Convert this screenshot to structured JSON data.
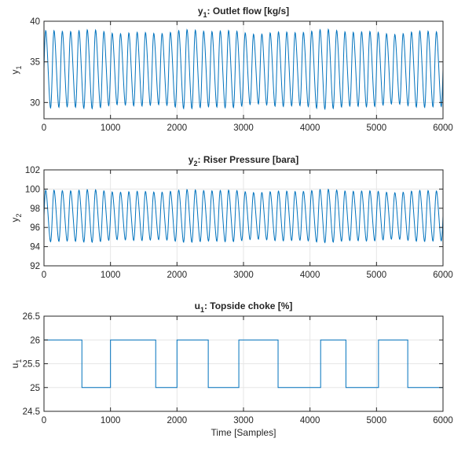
{
  "chart_data": [
    {
      "type": "line",
      "title": "y₁: Outlet flow [kg/s]",
      "title_main": "y",
      "title_sub": "1",
      "title_rest": ": Outlet flow [kg/s]",
      "ylabel_main": "y",
      "ylabel_sub": "1",
      "xlabel": "",
      "xlim": [
        0,
        6000
      ],
      "ylim": [
        28,
        40
      ],
      "x_ticks": [
        "0",
        "1000",
        "2000",
        "3000",
        "4000",
        "5000",
        "6000"
      ],
      "y_ticks": [
        "30",
        "35",
        "40"
      ],
      "grid": true,
      "color": "#0072BD",
      "series_shape": {
        "kind": "oscillation",
        "mean": 34.1,
        "amplitude": 4.6,
        "period_samples": 125,
        "min": 29.5,
        "max": 38.9
      }
    },
    {
      "type": "line",
      "title": "y₂: Riser Pressure [bara]",
      "title_main": "y",
      "title_sub": "2",
      "title_rest": ": Riser Pressure [bara]",
      "ylabel_main": "y",
      "ylabel_sub": "2",
      "xlabel": "",
      "xlim": [
        0,
        6000
      ],
      "ylim": [
        92,
        102
      ],
      "x_ticks": [
        "0",
        "1000",
        "2000",
        "3000",
        "4000",
        "5000",
        "6000"
      ],
      "y_ticks": [
        "92",
        "94",
        "96",
        "98",
        "100",
        "102"
      ],
      "grid": true,
      "color": "#0072BD",
      "series_shape": {
        "kind": "oscillation",
        "mean": 97.2,
        "amplitude": 2.6,
        "period_samples": 125,
        "min": 94.5,
        "max": 100.0
      }
    },
    {
      "type": "line",
      "title": "u₁: Topside choke [%]",
      "title_main": "u",
      "title_sub": "1",
      "title_rest": ": Topside choke [%]",
      "ylabel_main": "u",
      "ylabel_sub": "1",
      "xlabel": "Time [Samples]",
      "xlim": [
        0,
        6000
      ],
      "ylim": [
        24.5,
        26.5
      ],
      "x_ticks": [
        "0",
        "1000",
        "2000",
        "3000",
        "4000",
        "5000",
        "6000"
      ],
      "y_ticks": [
        "24.5",
        "25",
        "25.5",
        "26",
        "26.5"
      ],
      "grid": true,
      "color": "#0072BD",
      "step_x": [
        0,
        570,
        570,
        1000,
        1000,
        1680,
        1680,
        2000,
        2000,
        2470,
        2470,
        2930,
        2930,
        3520,
        3520,
        4160,
        4160,
        4540,
        4540,
        5030,
        5030,
        5470,
        5470,
        6000
      ],
      "step_y": [
        26,
        26,
        25,
        25,
        26,
        26,
        25,
        25,
        26,
        26,
        25,
        25,
        26,
        26,
        25,
        25,
        26,
        26,
        25,
        25,
        26,
        26,
        25,
        25
      ]
    }
  ]
}
